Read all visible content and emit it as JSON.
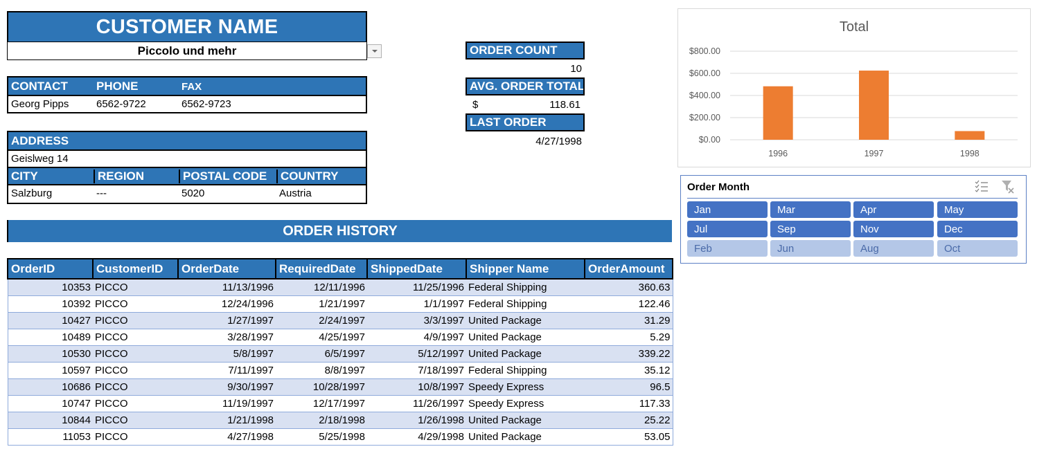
{
  "customer": {
    "title": "CUSTOMER NAME",
    "selected_name": "Piccolo und mehr"
  },
  "contact": {
    "headers": [
      "CONTACT",
      "PHONE",
      "FAX"
    ],
    "values": [
      "Georg Pipps",
      "6562-9722",
      "6562-9723"
    ]
  },
  "address": {
    "header": "ADDRESS",
    "value": "Geislweg 14",
    "headers": [
      "CITY",
      "REGION",
      "POSTAL CODE",
      "COUNTRY"
    ],
    "values": [
      "Salzburg",
      "---",
      "5020",
      "Austria"
    ]
  },
  "stats": {
    "order_count_label": "ORDER COUNT",
    "order_count": "10",
    "avg_total_label": "AVG. ORDER TOTAL",
    "avg_currency": "$",
    "avg_total": "118.61",
    "last_order_label": "LAST ORDER",
    "last_order": "4/27/1998"
  },
  "order_history": {
    "title": "ORDER HISTORY",
    "columns": [
      "OrderID",
      "CustomerID",
      "OrderDate",
      "RequiredDate",
      "ShippedDate",
      "Shipper Name",
      "OrderAmount"
    ],
    "rows": [
      [
        "10353",
        "PICCO",
        "11/13/1996",
        "12/11/1996",
        "11/25/1996",
        "Federal Shipping",
        "360.63"
      ],
      [
        "10392",
        "PICCO",
        "12/24/1996",
        "1/21/1997",
        "1/1/1997",
        "Federal Shipping",
        "122.46"
      ],
      [
        "10427",
        "PICCO",
        "1/27/1997",
        "2/24/1997",
        "3/3/1997",
        "United Package",
        "31.29"
      ],
      [
        "10489",
        "PICCO",
        "3/28/1997",
        "4/25/1997",
        "4/9/1997",
        "United Package",
        "5.29"
      ],
      [
        "10530",
        "PICCO",
        "5/8/1997",
        "6/5/1997",
        "5/12/1997",
        "United Package",
        "339.22"
      ],
      [
        "10597",
        "PICCO",
        "7/11/1997",
        "8/8/1997",
        "7/18/1997",
        "Federal Shipping",
        "35.12"
      ],
      [
        "10686",
        "PICCO",
        "9/30/1997",
        "10/28/1997",
        "10/8/1997",
        "Speedy Express",
        "96.5"
      ],
      [
        "10747",
        "PICCO",
        "11/19/1997",
        "12/17/1997",
        "11/26/1997",
        "Speedy Express",
        "117.33"
      ],
      [
        "10844",
        "PICCO",
        "1/21/1998",
        "2/18/1998",
        "1/26/1998",
        "United Package",
        "25.22"
      ],
      [
        "11053",
        "PICCO",
        "4/27/1998",
        "5/25/1998",
        "4/29/1998",
        "United Package",
        "53.05"
      ]
    ]
  },
  "chart_data": {
    "type": "bar",
    "title": "Total",
    "categories": [
      "1996",
      "1997",
      "1998"
    ],
    "values": [
      483.09,
      624.75,
      78.27
    ],
    "xlabel": "",
    "ylabel": "",
    "ylim": [
      0,
      800
    ],
    "yticks": [
      "$0.00",
      "$200.00",
      "$400.00",
      "$600.00",
      "$800.00"
    ],
    "grid": true,
    "legend": "none",
    "bar_color": "#ed7d31"
  },
  "slicer": {
    "title": "Order Month",
    "icons": [
      "multi-select-icon",
      "clear-filter-icon"
    ],
    "items": [
      {
        "label": "Jan",
        "selected": true
      },
      {
        "label": "Mar",
        "selected": true
      },
      {
        "label": "Apr",
        "selected": true
      },
      {
        "label": "May",
        "selected": true
      },
      {
        "label": "Jul",
        "selected": true
      },
      {
        "label": "Sep",
        "selected": true
      },
      {
        "label": "Nov",
        "selected": true
      },
      {
        "label": "Dec",
        "selected": true
      },
      {
        "label": "Feb",
        "selected": false
      },
      {
        "label": "Jun",
        "selected": false
      },
      {
        "label": "Aug",
        "selected": false
      },
      {
        "label": "Oct",
        "selected": false
      }
    ]
  },
  "colors": {
    "header_blue": "#2e75b6",
    "row_band": "#d9e1f2",
    "slicer_on": "#4472c4",
    "slicer_off": "#b4c7e7",
    "bar_orange": "#ed7d31"
  }
}
